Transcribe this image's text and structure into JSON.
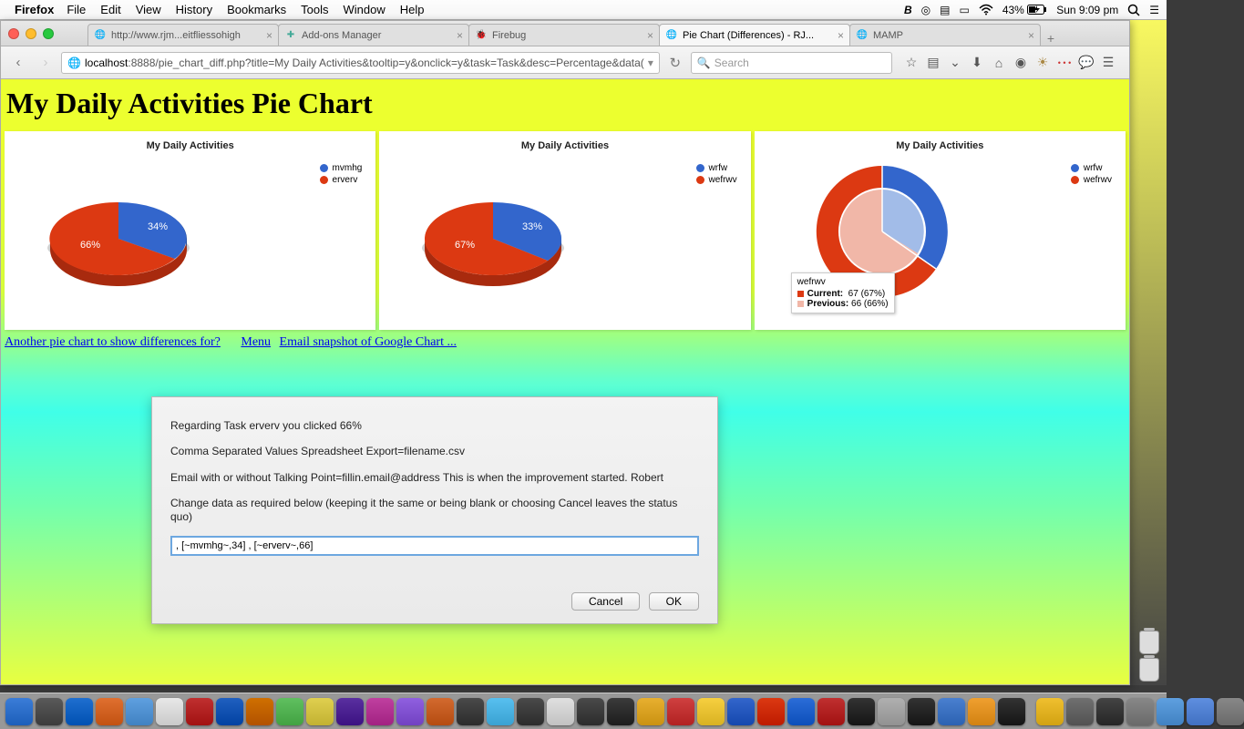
{
  "menubar": {
    "app": "Firefox",
    "items": [
      "File",
      "Edit",
      "View",
      "History",
      "Bookmarks",
      "Tools",
      "Window",
      "Help"
    ],
    "battery": "43%",
    "clock": "Sun 9:09 pm"
  },
  "tabs": [
    {
      "title": "http://www.rjm...eitfliessohigh",
      "active": false
    },
    {
      "title": "Add-ons Manager",
      "active": false
    },
    {
      "title": "Firebug",
      "active": false
    },
    {
      "title": "Pie Chart (Differences) - RJ...",
      "active": true
    },
    {
      "title": "MAMP",
      "active": false
    }
  ],
  "url": {
    "host": "localhost",
    "rest": ":8888/pie_chart_diff.php?title=My Daily Activities&tooltip=y&onclick=y&task=Task&desc=Percentage&data("
  },
  "search_placeholder": "Search",
  "page_title": "My Daily Activities Pie Chart",
  "chart1": {
    "title": "My Daily Activities",
    "type": "pie-3d",
    "slices": [
      {
        "label": "mvmhg",
        "value": 34,
        "color": "#3366cc"
      },
      {
        "label": "erverv",
        "value": 66,
        "color": "#dc3912"
      }
    ],
    "label_a": "34%",
    "label_b": "66%",
    "legend": [
      {
        "label": "mvmhg",
        "color": "#3366cc"
      },
      {
        "label": "erverv",
        "color": "#dc3912"
      }
    ]
  },
  "chart2": {
    "title": "My Daily Activities",
    "type": "pie-3d",
    "slices": [
      {
        "label": "wrfw",
        "value": 33,
        "color": "#3366cc"
      },
      {
        "label": "wefrwv",
        "value": 67,
        "color": "#dc3912"
      }
    ],
    "label_a": "33%",
    "label_b": "67%",
    "legend": [
      {
        "label": "wrfw",
        "color": "#3366cc"
      },
      {
        "label": "wefrwv",
        "color": "#dc3912"
      }
    ]
  },
  "chart3": {
    "title": "My Daily Activities",
    "type": "diff-pie",
    "outer": [
      {
        "value": 33,
        "color": "#3366cc"
      },
      {
        "value": 67,
        "color": "#dc3912"
      }
    ],
    "inner": [
      {
        "value": 34,
        "color": "#a2bce8"
      },
      {
        "value": 66,
        "color": "#f1b7a8"
      }
    ],
    "legend": [
      {
        "label": "wrfw",
        "color": "#3366cc"
      },
      {
        "label": "wefrwv",
        "color": "#dc3912"
      }
    ],
    "tooltip": {
      "title": "wefrwv",
      "current": "67 (67%)",
      "previous": "66 (66%)",
      "cur_color": "#dc3912",
      "prev_color": "#f1b7a8"
    }
  },
  "links": {
    "another": "Another pie chart to show differences for?",
    "menu": "Menu",
    "email": "Email snapshot of Google Chart ..."
  },
  "dialog": {
    "line1": "Regarding Task erverv you clicked 66%",
    "line2": "Comma Separated Values Spreadsheet Export=filename.csv",
    "line3": "Email with or without Talking Point=fillin.email@address This is when the improvement started.  Robert",
    "line4": "Change data as required below (keeping it the same or being blank or choosing Cancel leaves the status quo)",
    "input_value": ", [~mvmhg~,34] , [~erverv~,66]",
    "cancel": "Cancel",
    "ok": "OK"
  },
  "dock_colors": [
    "#3b7dd8",
    "#5a5a5a",
    "#1f6fd0",
    "#e07030",
    "#5fa0e0",
    "#e8e8e8",
    "#c03030",
    "#2060c0",
    "#d07000",
    "#60c060",
    "#e0d050",
    "#5a30a0",
    "#c040a0",
    "#9060e0",
    "#d36a2f",
    "#4a4a4a",
    "#58c0f0",
    "#4a4a4a",
    "#e0e0e0",
    "#4a4a4a",
    "#3b3b3b",
    "#e8b030",
    "#d04040",
    "#f7d040",
    "#3366cc",
    "#dc3912",
    "#2b6dd8",
    "#c03030",
    "#333",
    "#b0b0b0",
    "#333",
    "#4a80d0",
    "#f0a030",
    "#333",
    "#f0c030",
    "#707070",
    "#444",
    "#888",
    "#5fa0e0",
    "#5f8fe0",
    "#888"
  ]
}
